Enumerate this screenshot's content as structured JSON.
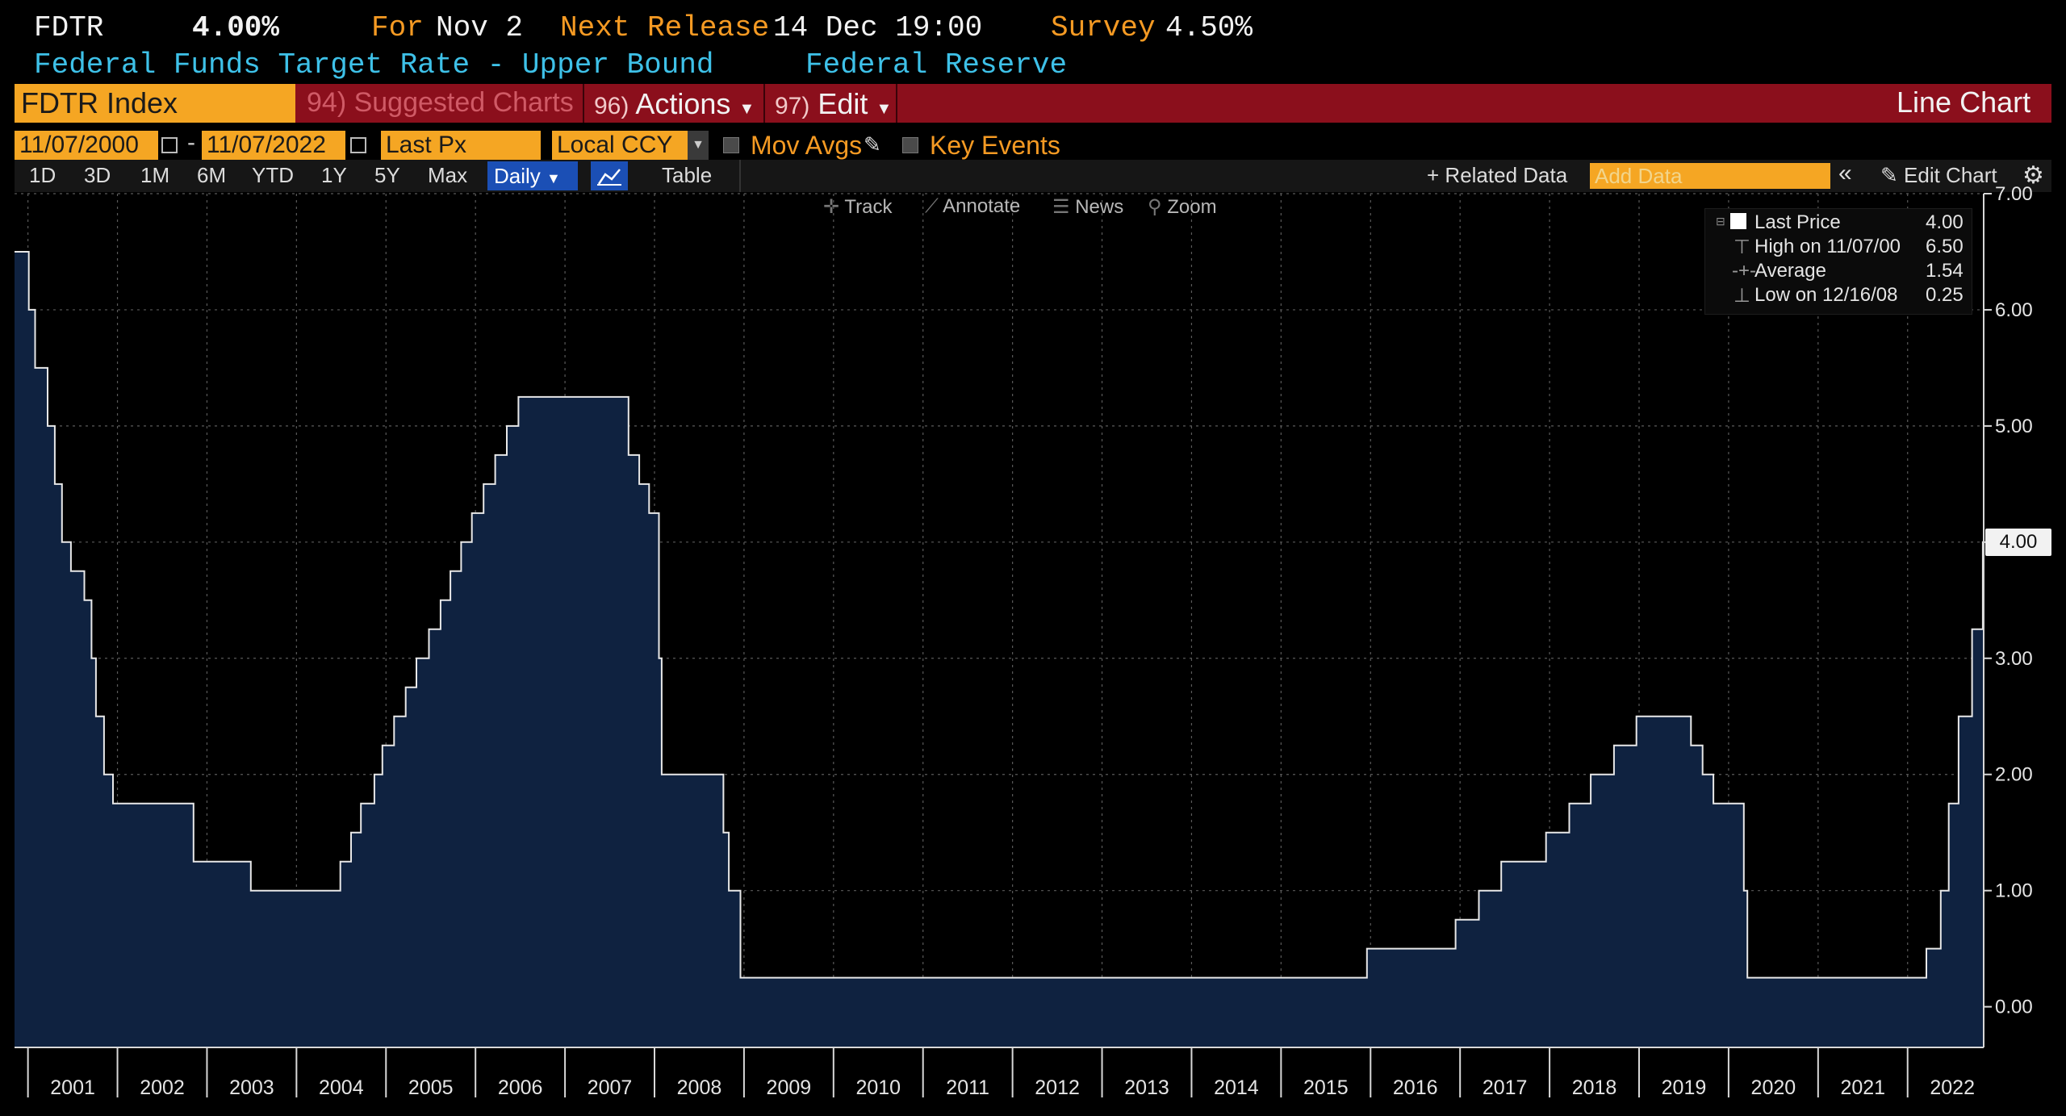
{
  "header": {
    "ticker": "FDTR",
    "last_value": "4.00%",
    "for_label": "For",
    "for_date": "Nov 2",
    "next_release_label": "Next Release",
    "next_release_value": "14 Dec 19:00",
    "survey_label": "Survey",
    "survey_value": "4.50%",
    "description": "Federal Funds Target Rate - Upper Bound",
    "source": "Federal Reserve"
  },
  "command_bar": {
    "security": "FDTR Index",
    "suggested_charts": "94) Suggested Charts",
    "actions_num": "96)",
    "actions_label": "Actions",
    "edit_num": "97)",
    "edit_label": "Edit",
    "chart_type": "Line Chart"
  },
  "controls": {
    "start_date": "11/07/2000",
    "separator": "-",
    "end_date": "11/07/2022",
    "field": "Last Px",
    "currency": "Local CCY",
    "mov_avgs": "Mov Avgs",
    "key_events": "Key Events"
  },
  "range_bar": {
    "ranges": [
      "1D",
      "3D",
      "1M",
      "6M",
      "YTD",
      "1Y",
      "5Y",
      "Max"
    ],
    "frequency": "Daily",
    "table": "Table",
    "related_data": "Related Data",
    "add_data_placeholder": "Add Data",
    "edit_chart": "Edit Chart"
  },
  "toolbar": {
    "track": "Track",
    "annotate": "Annotate",
    "news": "News",
    "zoom": "Zoom"
  },
  "legend": {
    "last_price_label": "Last Price",
    "last_price_value": "4.00",
    "high_label": "High on 11/07/00",
    "high_value": "6.50",
    "average_label": "Average",
    "average_value": "1.54",
    "low_label": "Low on 12/16/08",
    "low_value": "0.25"
  },
  "colors": {
    "background": "#000000",
    "area_fill": "#0f2240",
    "line": "#e8e8e8",
    "accent_orange": "#f59a23",
    "accent_cyan": "#3ec1e8",
    "command_bar": "#8b0f1c"
  },
  "chart_data": {
    "type": "area",
    "title": "Federal Funds Target Rate - Upper Bound",
    "series": [
      {
        "name": "FDTR Index (Last Px)",
        "step": true,
        "points": [
          [
            2000.85,
            6.5
          ],
          [
            2001.01,
            6.0
          ],
          [
            2001.08,
            5.5
          ],
          [
            2001.22,
            5.0
          ],
          [
            2001.3,
            4.5
          ],
          [
            2001.38,
            4.0
          ],
          [
            2001.48,
            3.75
          ],
          [
            2001.63,
            3.5
          ],
          [
            2001.71,
            3.0
          ],
          [
            2001.76,
            2.5
          ],
          [
            2001.85,
            2.0
          ],
          [
            2001.95,
            1.75
          ],
          [
            2002.85,
            1.25
          ],
          [
            2003.49,
            1.0
          ],
          [
            2004.49,
            1.25
          ],
          [
            2004.61,
            1.5
          ],
          [
            2004.72,
            1.75
          ],
          [
            2004.87,
            2.0
          ],
          [
            2004.96,
            2.25
          ],
          [
            2005.09,
            2.5
          ],
          [
            2005.22,
            2.75
          ],
          [
            2005.34,
            3.0
          ],
          [
            2005.48,
            3.25
          ],
          [
            2005.61,
            3.5
          ],
          [
            2005.72,
            3.75
          ],
          [
            2005.84,
            4.0
          ],
          [
            2005.96,
            4.25
          ],
          [
            2006.09,
            4.5
          ],
          [
            2006.22,
            4.75
          ],
          [
            2006.35,
            5.0
          ],
          [
            2006.48,
            5.25
          ],
          [
            2007.71,
            4.75
          ],
          [
            2007.83,
            4.5
          ],
          [
            2007.94,
            4.25
          ],
          [
            2008.05,
            3.0
          ],
          [
            2008.08,
            2.0
          ],
          [
            2008.3,
            2.0
          ],
          [
            2008.77,
            1.5
          ],
          [
            2008.83,
            1.0
          ],
          [
            2008.96,
            0.25
          ],
          [
            2015.96,
            0.5
          ],
          [
            2016.95,
            0.75
          ],
          [
            2017.21,
            1.0
          ],
          [
            2017.46,
            1.25
          ],
          [
            2017.96,
            1.5
          ],
          [
            2018.22,
            1.75
          ],
          [
            2018.46,
            2.0
          ],
          [
            2018.72,
            2.25
          ],
          [
            2018.97,
            2.5
          ],
          [
            2019.58,
            2.25
          ],
          [
            2019.71,
            2.0
          ],
          [
            2019.83,
            1.75
          ],
          [
            2020.17,
            1.0
          ],
          [
            2020.21,
            0.25
          ],
          [
            2022.21,
            0.5
          ],
          [
            2022.37,
            1.0
          ],
          [
            2022.46,
            1.75
          ],
          [
            2022.57,
            2.5
          ],
          [
            2022.72,
            3.25
          ],
          [
            2022.84,
            4.0
          ],
          [
            2022.85,
            4.0
          ]
        ]
      }
    ],
    "x_ticks": [
      "2001",
      "2002",
      "2003",
      "2004",
      "2005",
      "2006",
      "2007",
      "2008",
      "2009",
      "2010",
      "2011",
      "2012",
      "2013",
      "2014",
      "2015",
      "2016",
      "2017",
      "2018",
      "2019",
      "2020",
      "2021",
      "2022"
    ],
    "y_ticks": [
      "0.00",
      "1.00",
      "2.00",
      "3.00",
      "4.00",
      "5.00",
      "6.00",
      "7.00"
    ],
    "xlim": [
      2000.85,
      2022.85
    ],
    "ylim": [
      -0.35,
      7.0
    ],
    "grid": true,
    "last_value_label": "4.00",
    "xlabel": "",
    "ylabel": ""
  }
}
